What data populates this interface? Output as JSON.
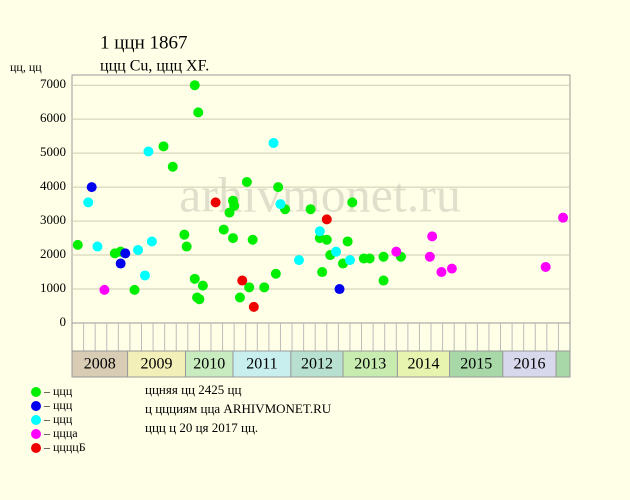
{
  "chart_data": {
    "type": "scatter",
    "title": "1 ццн 1867",
    "subtitle": "ццц Cu, ццц XF.",
    "y_label": "цц, цц",
    "watermark": "arhivmonet.ru",
    "xlim": [
      0,
      43
    ],
    "ylim": [
      0,
      7300
    ],
    "yticks": [
      0,
      1000,
      2000,
      3000,
      4000,
      5000,
      6000,
      7000
    ],
    "grid": true,
    "year_bands": [
      {
        "label": "2008",
        "start": 0,
        "end": 4.8,
        "color": "#d8ccb4"
      },
      {
        "label": "2009",
        "start": 4.8,
        "end": 9.8,
        "color": "#f2f0b8"
      },
      {
        "label": "2010",
        "start": 9.8,
        "end": 13.9,
        "color": "#c8ecc0"
      },
      {
        "label": "2011",
        "start": 13.9,
        "end": 18.9,
        "color": "#c8eeee"
      },
      {
        "label": "2012",
        "start": 18.9,
        "end": 23.4,
        "color": "#b8e0d0"
      },
      {
        "label": "2013",
        "start": 23.4,
        "end": 28.1,
        "color": "#c8ecb0"
      },
      {
        "label": "2014",
        "start": 28.1,
        "end": 32.6,
        "color": "#e6f4b0"
      },
      {
        "label": "2015",
        "start": 32.6,
        "end": 37.2,
        "color": "#a8d8a8"
      },
      {
        "label": "2016",
        "start": 37.2,
        "end": 41.8,
        "color": "#d8d8ec"
      },
      {
        "label": null,
        "start": 41.8,
        "end": 43,
        "color": "#a8d8a8"
      }
    ],
    "series": [
      {
        "name": "– ццц",
        "color": "#00ee00",
        "x": [
          0.5,
          3.7,
          4.2,
          5.4,
          7.9,
          8.7,
          9.7,
          9.9,
          10.6,
          10.9,
          10.6,
          10.8,
          11.0,
          11.3,
          13.1,
          13.6,
          13.9,
          14.0,
          13.9,
          14.5,
          15.1,
          15.3,
          15.6,
          16.6,
          17.6,
          17.8,
          18.4,
          20.6,
          21.4,
          22.0,
          21.6,
          22.3,
          23.4,
          23.8,
          24.2,
          25.2,
          25.7,
          26.9,
          26.9,
          28.4
        ],
        "values": [
          2300,
          2050,
          2100,
          975,
          5200,
          4600,
          2600,
          2250,
          7000,
          6200,
          1300,
          750,
          700,
          1100,
          2750,
          3250,
          3600,
          3450,
          2500,
          750,
          4150,
          1050,
          2450,
          1050,
          1450,
          4000,
          3350,
          3350,
          2500,
          2450,
          1500,
          2000,
          1750,
          2400,
          3550,
          1900,
          1900,
          1950,
          1250,
          1950
        ]
      },
      {
        "name": "– ццц",
        "color": "#0000ee",
        "x": [
          1.7,
          4.6,
          4.2,
          23.1
        ],
        "values": [
          4000,
          2050,
          1750,
          1000
        ]
      },
      {
        "name": "– ццц",
        "color": "#00ffff",
        "x": [
          1.4,
          2.2,
          5.7,
          6.3,
          6.6,
          6.9,
          17.4,
          18.0,
          19.6,
          21.4,
          22.8,
          24.0
        ],
        "values": [
          3550,
          2250,
          2150,
          1400,
          5050,
          2400,
          5300,
          3500,
          1850,
          2700,
          2100,
          1850
        ]
      },
      {
        "name": "– ццца",
        "color": "#ff00ff",
        "x": [
          2.8,
          28.0,
          30.9,
          31.1,
          31.9,
          32.8,
          40.9,
          42.4
        ],
        "values": [
          975,
          2100,
          1950,
          2550,
          1500,
          1600,
          1650,
          3100
        ]
      },
      {
        "name": "– ццццБ",
        "color": "#ee0000",
        "x": [
          12.4,
          14.7,
          15.7,
          22.0
        ],
        "values": [
          3550,
          1250,
          475,
          3050
        ]
      }
    ],
    "notes": [
      "ццняя цц 2425 цц",
      "ц ццциям цца ARHIVMONET.RU",
      "ццц ц 20 ця 2017 цц."
    ]
  }
}
